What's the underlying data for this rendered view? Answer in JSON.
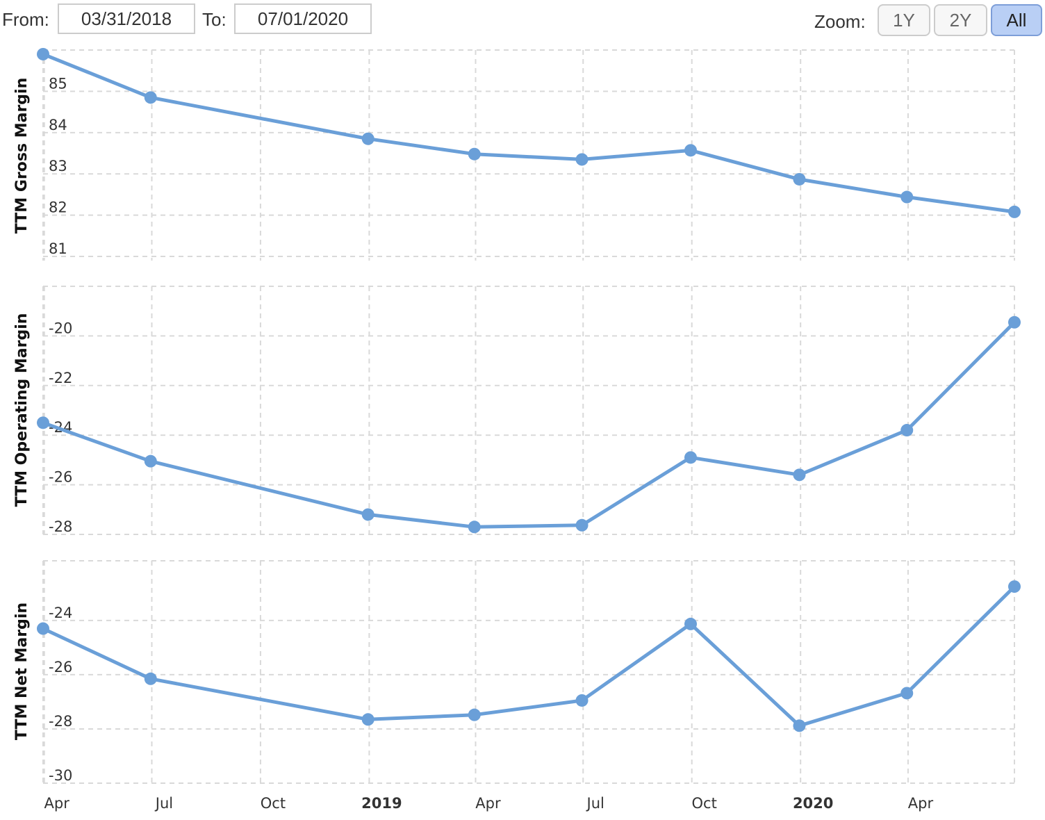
{
  "toolbar": {
    "from_label": "From:",
    "from_value": "03/31/2018",
    "to_label": "To:",
    "to_value": "07/01/2020",
    "zoom_label": "Zoom:",
    "zoom_options": [
      "1Y",
      "2Y",
      "All"
    ],
    "zoom_selected": "All"
  },
  "colors": {
    "series": "#6a9fd8",
    "grid": "#d9d9d9",
    "active_zoom": "#b9cff5"
  },
  "chart_data": [
    {
      "type": "line",
      "ylabel": "TTM Gross Margin",
      "x": [
        "2018-03-31",
        "2018-06-30",
        "2018-12-31",
        "2019-03-31",
        "2019-06-30",
        "2019-09-30",
        "2019-12-31",
        "2020-03-31",
        "2020-06-30"
      ],
      "values": [
        85.9,
        84.85,
        83.85,
        83.48,
        83.35,
        83.57,
        82.87,
        82.44,
        82.08
      ],
      "ylim": [
        80.9,
        86.0
      ],
      "yticks": [
        81,
        82,
        83,
        84,
        85
      ],
      "grid": true
    },
    {
      "type": "line",
      "ylabel": "TTM Operating Margin",
      "x": [
        "2018-03-31",
        "2018-06-30",
        "2018-12-31",
        "2019-03-31",
        "2019-06-30",
        "2019-09-30",
        "2019-12-31",
        "2020-03-31",
        "2020-06-30"
      ],
      "values": [
        -23.5,
        -25.05,
        -27.2,
        -27.7,
        -27.63,
        -24.9,
        -25.6,
        -23.8,
        -19.45
      ],
      "ylim": [
        -28.0,
        -18.0
      ],
      "yticks": [
        -28,
        -26,
        -24,
        -22,
        -20
      ],
      "grid": true
    },
    {
      "type": "line",
      "ylabel": "TTM Net Margin",
      "x": [
        "2018-03-31",
        "2018-06-30",
        "2018-12-31",
        "2019-03-31",
        "2019-06-30",
        "2019-09-30",
        "2019-12-31",
        "2020-03-31",
        "2020-06-30"
      ],
      "values": [
        -24.3,
        -26.15,
        -27.65,
        -27.48,
        -26.95,
        -24.13,
        -27.88,
        -26.68,
        -22.75
      ],
      "ylim": [
        -30.0,
        -21.8
      ],
      "yticks": [
        -30,
        -28,
        -26,
        -24
      ],
      "grid": true
    }
  ],
  "x_axis": {
    "ticks": [
      {
        "date": "2018-04-01",
        "label": "Apr",
        "year": false
      },
      {
        "date": "2018-07-01",
        "label": "Jul",
        "year": false
      },
      {
        "date": "2018-10-01",
        "label": "Oct",
        "year": false
      },
      {
        "date": "2019-01-01",
        "label": "2019",
        "year": true
      },
      {
        "date": "2019-04-01",
        "label": "Apr",
        "year": false
      },
      {
        "date": "2019-07-01",
        "label": "Jul",
        "year": false
      },
      {
        "date": "2019-10-01",
        "label": "Oct",
        "year": false
      },
      {
        "date": "2020-01-01",
        "label": "2020",
        "year": true
      },
      {
        "date": "2020-04-01",
        "label": "Apr",
        "year": false
      }
    ],
    "range": [
      "2018-03-31",
      "2020-06-30"
    ]
  }
}
